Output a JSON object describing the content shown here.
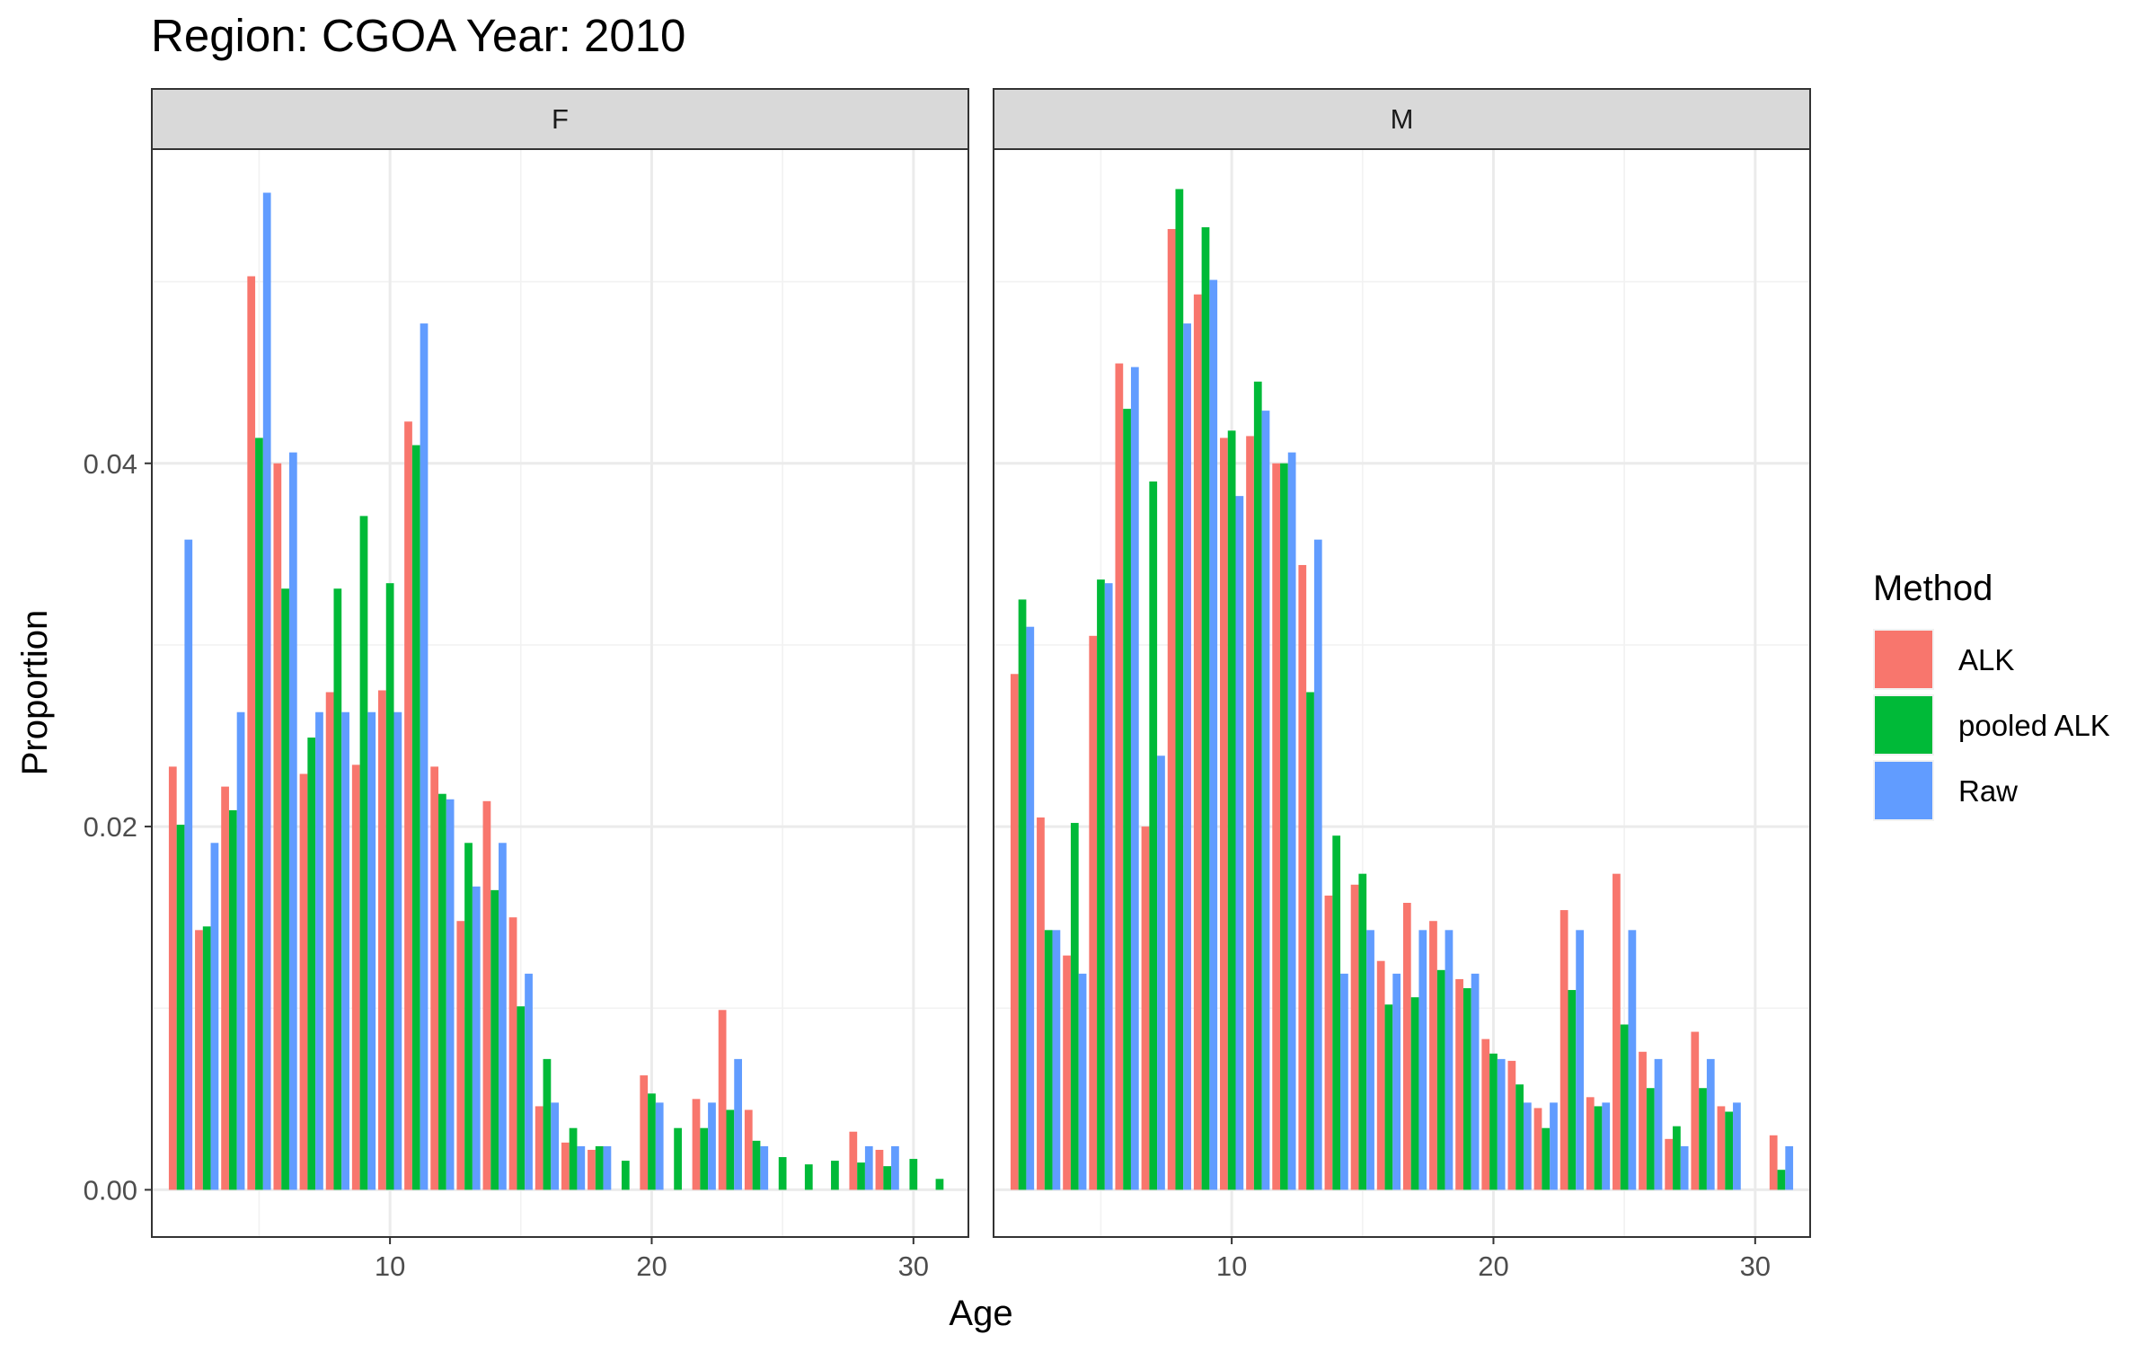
{
  "title": "Region: CGOA Year: 2010",
  "colors": {
    "ALK": "#F8766D",
    "pooled ALK": "#00BA38",
    "Raw": "#619CFF"
  },
  "legend": {
    "title": "Method",
    "items": [
      "ALK",
      "pooled ALK",
      "Raw"
    ]
  },
  "chart_data": {
    "type": "bar",
    "title": "Region: CGOA Year: 2010",
    "xlabel": "Age",
    "ylabel": "Proportion",
    "xlim": [
      0.9,
      32.1
    ],
    "ylim": [
      -0.0026,
      0.0573
    ],
    "x_ticks": [
      10,
      20,
      30
    ],
    "y_ticks": [
      0.0,
      0.02,
      0.04
    ],
    "y_tick_labels": [
      "0.00",
      "0.02",
      "0.04"
    ],
    "grid": true,
    "legend_position": "right",
    "series_names": [
      "ALK",
      "pooled ALK",
      "Raw"
    ],
    "panels": [
      {
        "label": "F",
        "series": [
          {
            "name": "ALK",
            "points": [
              [
                2,
                0.0233
              ],
              [
                3,
                0.0143
              ],
              [
                4,
                0.0222
              ],
              [
                5,
                0.0503
              ],
              [
                6,
                0.04
              ],
              [
                7,
                0.0229
              ],
              [
                8,
                0.0274
              ],
              [
                9,
                0.0234
              ],
              [
                10,
                0.0275
              ],
              [
                11,
                0.0423
              ],
              [
                12,
                0.0233
              ],
              [
                13,
                0.0148
              ],
              [
                14,
                0.0214
              ],
              [
                15,
                0.015
              ],
              [
                16,
                0.0046
              ],
              [
                17,
                0.0026
              ],
              [
                18,
                0.0022
              ],
              [
                20,
                0.0063
              ],
              [
                22,
                0.005
              ],
              [
                23,
                0.0099
              ],
              [
                24,
                0.0044
              ],
              [
                28,
                0.0032
              ],
              [
                29,
                0.0022
              ]
            ]
          },
          {
            "name": "pooled ALK",
            "points": [
              [
                2,
                0.0201
              ],
              [
                3,
                0.0145
              ],
              [
                4,
                0.0209
              ],
              [
                5,
                0.0414
              ],
              [
                6,
                0.0331
              ],
              [
                7,
                0.0249
              ],
              [
                8,
                0.0331
              ],
              [
                9,
                0.0371
              ],
              [
                10,
                0.0334
              ],
              [
                11,
                0.041
              ],
              [
                12,
                0.0218
              ],
              [
                13,
                0.0191
              ],
              [
                14,
                0.0165
              ],
              [
                15,
                0.0101
              ],
              [
                16,
                0.0072
              ],
              [
                17,
                0.0034
              ],
              [
                18,
                0.0024
              ],
              [
                19,
                0.0016
              ],
              [
                20,
                0.0053
              ],
              [
                21,
                0.0034
              ],
              [
                22,
                0.0034
              ],
              [
                23,
                0.0044
              ],
              [
                24,
                0.0027
              ],
              [
                25,
                0.0018
              ],
              [
                26,
                0.0014
              ],
              [
                27,
                0.0016
              ],
              [
                28,
                0.0015
              ],
              [
                29,
                0.0013
              ],
              [
                30,
                0.0017
              ],
              [
                31,
                0.0006
              ]
            ]
          },
          {
            "name": "Raw",
            "points": [
              [
                2,
                0.0358
              ],
              [
                3,
                0.0191
              ],
              [
                4,
                0.0263
              ],
              [
                5,
                0.0549
              ],
              [
                6,
                0.0406
              ],
              [
                7,
                0.0263
              ],
              [
                8,
                0.0263
              ],
              [
                9,
                0.0263
              ],
              [
                10,
                0.0263
              ],
              [
                11,
                0.0477
              ],
              [
                12,
                0.0215
              ],
              [
                13,
                0.0167
              ],
              [
                14,
                0.0191
              ],
              [
                15,
                0.0119
              ],
              [
                16,
                0.0048
              ],
              [
                17,
                0.0024
              ],
              [
                18,
                0.0024
              ],
              [
                20,
                0.0048
              ],
              [
                22,
                0.0048
              ],
              [
                23,
                0.0072
              ],
              [
                24,
                0.0024
              ],
              [
                28,
                0.0024
              ],
              [
                29,
                0.0024
              ]
            ]
          }
        ]
      },
      {
        "label": "M",
        "series": [
          {
            "name": "ALK",
            "points": [
              [
                2,
                0.0284
              ],
              [
                3,
                0.0205
              ],
              [
                4,
                0.0129
              ],
              [
                5,
                0.0305
              ],
              [
                6,
                0.0455
              ],
              [
                7,
                0.02
              ],
              [
                8,
                0.0529
              ],
              [
                9,
                0.0493
              ],
              [
                10,
                0.0414
              ],
              [
                11,
                0.0415
              ],
              [
                12,
                0.04
              ],
              [
                13,
                0.0344
              ],
              [
                14,
                0.0162
              ],
              [
                15,
                0.0168
              ],
              [
                16,
                0.0126
              ],
              [
                17,
                0.0158
              ],
              [
                18,
                0.0148
              ],
              [
                19,
                0.0116
              ],
              [
                20,
                0.0083
              ],
              [
                21,
                0.0071
              ],
              [
                22,
                0.0045
              ],
              [
                23,
                0.0154
              ],
              [
                24,
                0.0051
              ],
              [
                25,
                0.0174
              ],
              [
                26,
                0.0076
              ],
              [
                27,
                0.0028
              ],
              [
                28,
                0.0087
              ],
              [
                29,
                0.0046
              ],
              [
                31,
                0.003
              ]
            ]
          },
          {
            "name": "pooled ALK",
            "points": [
              [
                2,
                0.0325
              ],
              [
                3,
                0.0143
              ],
              [
                4,
                0.0202
              ],
              [
                5,
                0.0336
              ],
              [
                6,
                0.043
              ],
              [
                7,
                0.039
              ],
              [
                8,
                0.0551
              ],
              [
                9,
                0.053
              ],
              [
                10,
                0.0418
              ],
              [
                11,
                0.0445
              ],
              [
                12,
                0.04
              ],
              [
                13,
                0.0274
              ],
              [
                14,
                0.0195
              ],
              [
                15,
                0.0174
              ],
              [
                16,
                0.0102
              ],
              [
                17,
                0.0106
              ],
              [
                18,
                0.0121
              ],
              [
                19,
                0.0111
              ],
              [
                20,
                0.0075
              ],
              [
                21,
                0.0058
              ],
              [
                22,
                0.0034
              ],
              [
                23,
                0.011
              ],
              [
                24,
                0.0046
              ],
              [
                25,
                0.0091
              ],
              [
                26,
                0.0056
              ],
              [
                27,
                0.0035
              ],
              [
                28,
                0.0056
              ],
              [
                29,
                0.0043
              ],
              [
                31,
                0.0011
              ]
            ]
          },
          {
            "name": "Raw",
            "points": [
              [
                2,
                0.031
              ],
              [
                3,
                0.0143
              ],
              [
                4,
                0.0119
              ],
              [
                5,
                0.0334
              ],
              [
                6,
                0.0453
              ],
              [
                7,
                0.0239
              ],
              [
                8,
                0.0477
              ],
              [
                9,
                0.0501
              ],
              [
                10,
                0.0382
              ],
              [
                11,
                0.0429
              ],
              [
                12,
                0.0406
              ],
              [
                13,
                0.0358
              ],
              [
                14,
                0.0119
              ],
              [
                15,
                0.0143
              ],
              [
                16,
                0.0119
              ],
              [
                17,
                0.0143
              ],
              [
                18,
                0.0143
              ],
              [
                19,
                0.0119
              ],
              [
                20,
                0.0072
              ],
              [
                21,
                0.0048
              ],
              [
                22,
                0.0048
              ],
              [
                23,
                0.0143
              ],
              [
                24,
                0.0048
              ],
              [
                25,
                0.0143
              ],
              [
                26,
                0.0072
              ],
              [
                27,
                0.0024
              ],
              [
                28,
                0.0072
              ],
              [
                29,
                0.0048
              ],
              [
                31,
                0.0024
              ]
            ]
          }
        ]
      }
    ]
  }
}
